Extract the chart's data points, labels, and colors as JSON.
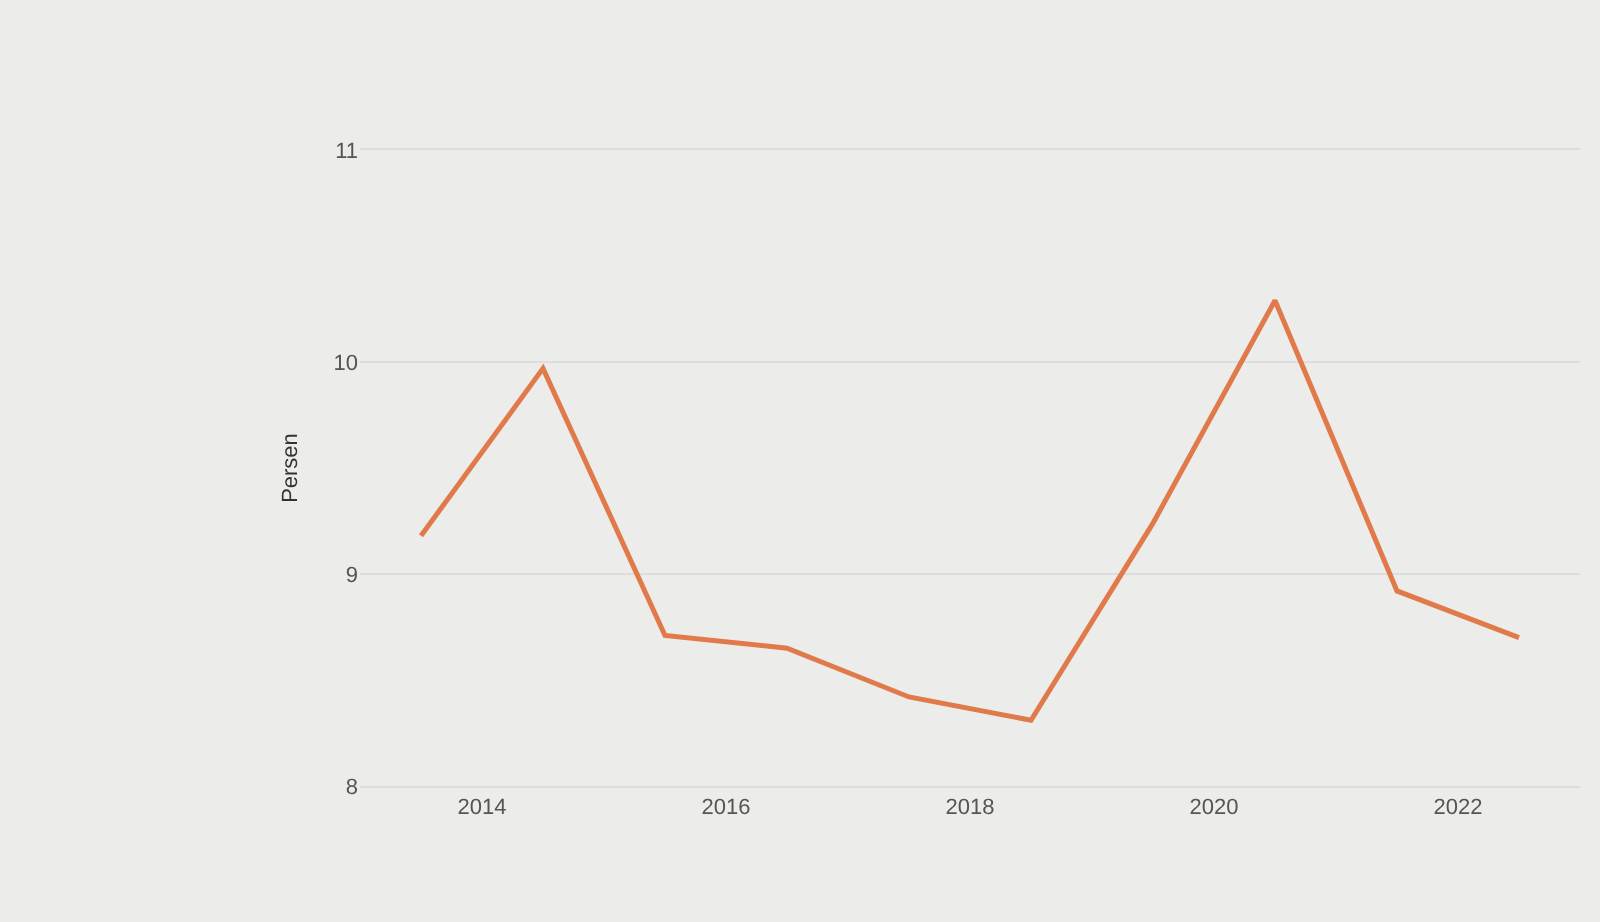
{
  "chart_data": {
    "type": "line",
    "ylabel": "Persen",
    "x": [
      2013.5,
      2014.5,
      2015.5,
      2016.5,
      2017.5,
      2018.5,
      2019.5,
      2020.5,
      2021.5,
      2022.5
    ],
    "series": [
      {
        "color": "#e07a4a",
        "values": [
          9.18,
          9.97,
          8.71,
          8.65,
          8.42,
          8.31,
          9.24,
          10.29,
          8.92,
          8.7
        ]
      }
    ],
    "xlim": [
      2013,
      2023
    ],
    "xticks": [
      2014,
      2016,
      2018,
      2020,
      2022
    ],
    "ylim": [
      8,
      11
    ],
    "yticks": [
      8,
      9,
      10,
      11
    ],
    "grid": "y",
    "marker": "none",
    "line_style": "solid"
  }
}
